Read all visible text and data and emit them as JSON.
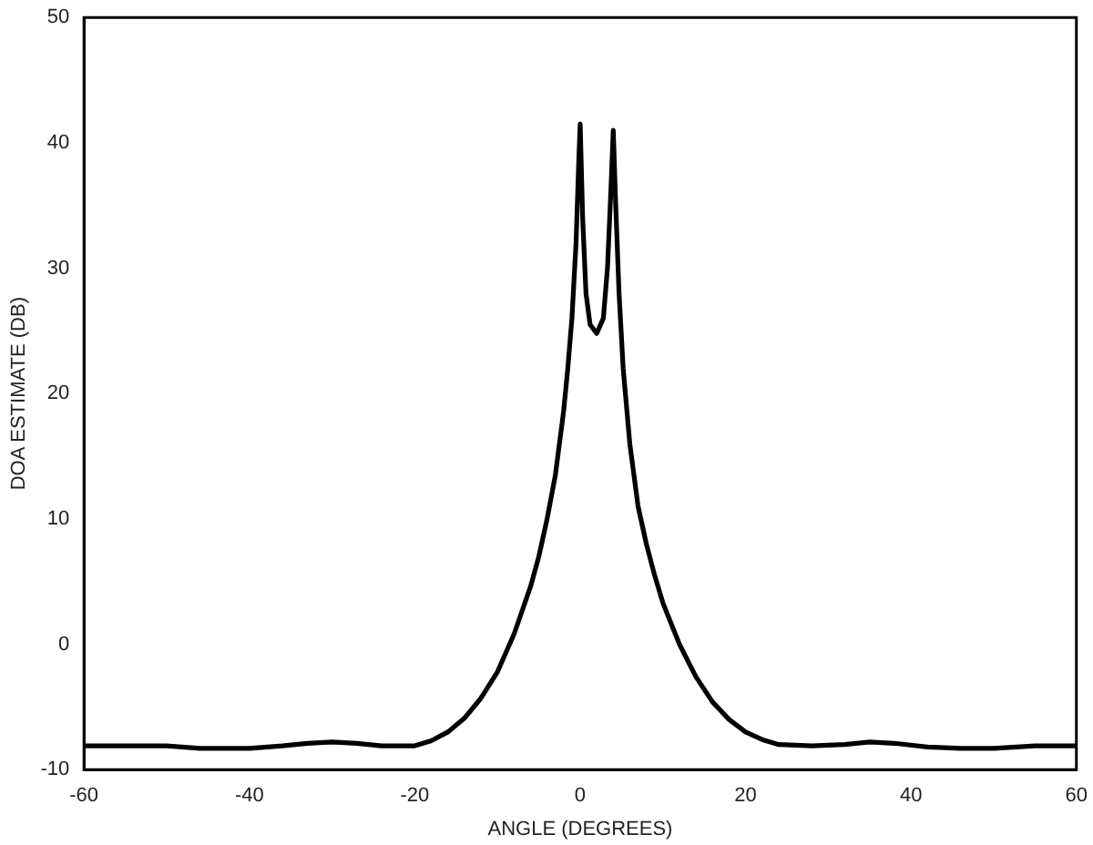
{
  "chart_data": {
    "type": "line",
    "xlabel": "ANGLE (DEGREES)",
    "ylabel": "DOA ESTIMATE (DB)",
    "xlim": [
      -60,
      60
    ],
    "ylim": [
      -10,
      50
    ],
    "xticks": [
      -60,
      -40,
      -20,
      0,
      20,
      40,
      60
    ],
    "yticks": [
      -10,
      0,
      10,
      20,
      30,
      40,
      50
    ],
    "grid": false,
    "legend": false,
    "marker": "none",
    "line_style": "solid",
    "series": [
      {
        "color": "#000000",
        "x": [
          -60,
          -50,
          -46,
          -40,
          -36,
          -33,
          -30,
          -27,
          -24,
          -20,
          -18,
          -16,
          -14,
          -12,
          -10,
          -8,
          -6,
          -5,
          -4,
          -3,
          -2,
          -1.5,
          -1,
          -0.5,
          -0.2,
          0,
          0.3,
          0.7,
          1.2,
          2,
          2.8,
          3.3,
          3.7,
          4,
          4.3,
          4.7,
          5.2,
          6,
          7,
          8,
          9,
          10,
          12,
          14,
          16,
          18,
          20,
          22,
          24,
          28,
          32,
          35,
          38,
          42,
          46,
          50,
          55,
          60
        ],
        "values": [
          -8.1,
          -8.1,
          -8.3,
          -8.3,
          -8.1,
          -7.9,
          -7.8,
          -7.9,
          -8.1,
          -8.1,
          -7.7,
          -7,
          -5.9,
          -4.3,
          -2.2,
          0.8,
          4.6,
          7,
          10,
          13.5,
          18.6,
          22,
          26,
          32,
          38,
          41.5,
          34,
          28,
          25.5,
          24.8,
          26,
          30,
          36,
          41,
          35,
          28,
          22,
          16,
          11,
          8,
          5.5,
          3.3,
          0,
          -2.6,
          -4.6,
          -6,
          -7,
          -7.6,
          -8,
          -8.1,
          -8,
          -7.8,
          -7.9,
          -8.2,
          -8.3,
          -8.3,
          -8.1,
          -8.1
        ]
      }
    ]
  }
}
